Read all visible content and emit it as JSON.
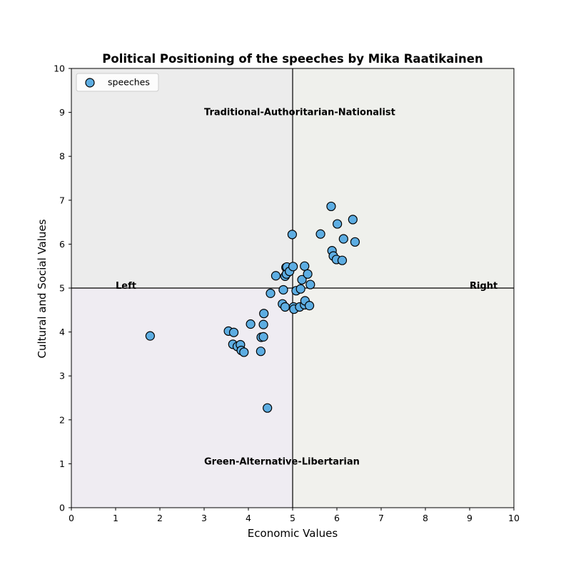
{
  "chart_data": {
    "type": "scatter",
    "title": "Political Positioning of the speeches by Mika Raatikainen",
    "xlabel": "Economic Values",
    "ylabel": "Cultural and Social Values",
    "xlim": [
      0,
      10
    ],
    "ylim": [
      0,
      10
    ],
    "xticks": [
      "0",
      "1",
      "2",
      "3",
      "4",
      "5",
      "6",
      "7",
      "8",
      "9",
      "10"
    ],
    "yticks": [
      "0",
      "1",
      "2",
      "3",
      "4",
      "5",
      "6",
      "7",
      "8",
      "9",
      "10"
    ],
    "grid": false,
    "legend_position": "top-left",
    "quadrant_colors": {
      "top_left": "#ececec",
      "top_right": "#eff0ec",
      "bottom_left": "#efecf2",
      "bottom_right": "#f1f1ed"
    },
    "reference_lines": {
      "x": 5,
      "y": 5,
      "color": "#000000"
    },
    "annotations": [
      {
        "text": "Traditional-Authoritarian-Nationalist",
        "x": 3.0,
        "y": 9.0
      },
      {
        "text": "Green-Alternative-Libertarian",
        "x": 3.0,
        "y": 1.05
      },
      {
        "text": "Left",
        "x": 1.0,
        "y": 5.05
      },
      {
        "text": "Right",
        "x": 9.0,
        "y": 5.05
      }
    ],
    "series": [
      {
        "name": "speeches",
        "color": "#5dade2",
        "edgecolor": "#000000",
        "points": [
          [
            1.78,
            3.91
          ],
          [
            3.55,
            4.02
          ],
          [
            3.67,
            3.99
          ],
          [
            3.65,
            3.72
          ],
          [
            3.75,
            3.67
          ],
          [
            3.82,
            3.71
          ],
          [
            3.84,
            3.58
          ],
          [
            3.9,
            3.54
          ],
          [
            4.05,
            4.18
          ],
          [
            4.28,
            3.56
          ],
          [
            4.29,
            3.88
          ],
          [
            4.34,
            3.89
          ],
          [
            4.34,
            4.17
          ],
          [
            4.35,
            4.42
          ],
          [
            4.43,
            2.27
          ],
          [
            4.5,
            4.88
          ],
          [
            4.62,
            5.28
          ],
          [
            4.77,
            4.64
          ],
          [
            4.79,
            4.96
          ],
          [
            4.83,
            4.57
          ],
          [
            4.83,
            5.27
          ],
          [
            4.85,
            5.47
          ],
          [
            4.86,
            5.32
          ],
          [
            4.87,
            5.48
          ],
          [
            4.93,
            5.38
          ],
          [
            4.99,
            6.22
          ],
          [
            5.01,
            5.49
          ],
          [
            5.02,
            4.57
          ],
          [
            5.03,
            4.52
          ],
          [
            5.08,
            4.94
          ],
          [
            5.16,
            4.57
          ],
          [
            5.18,
            4.98
          ],
          [
            5.21,
            5.19
          ],
          [
            5.27,
            5.5
          ],
          [
            5.27,
            4.62
          ],
          [
            5.28,
            4.71
          ],
          [
            5.34,
            5.32
          ],
          [
            5.38,
            4.6
          ],
          [
            5.4,
            5.08
          ],
          [
            5.63,
            6.23
          ],
          [
            5.87,
            6.86
          ],
          [
            5.89,
            5.85
          ],
          [
            5.92,
            5.73
          ],
          [
            5.99,
            5.65
          ],
          [
            6.01,
            6.46
          ],
          [
            6.12,
            5.63
          ],
          [
            6.15,
            6.12
          ],
          [
            6.36,
            6.56
          ],
          [
            6.41,
            6.05
          ]
        ]
      }
    ]
  }
}
